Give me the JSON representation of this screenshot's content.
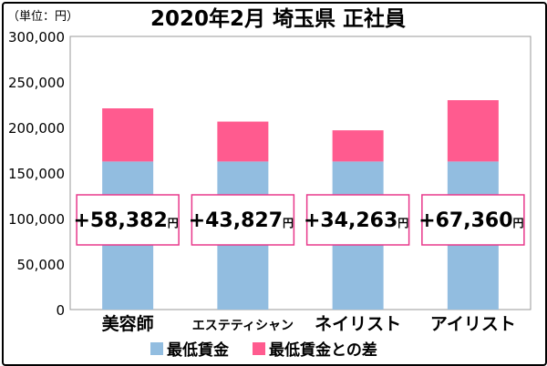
{
  "unit_label": "（単位：円）",
  "colors": {
    "base": "#92bde0",
    "diff": "#ff5b8f",
    "box_border": "#e8388b"
  },
  "chart_data": {
    "type": "bar",
    "stacked": true,
    "title": "2020年2月 埼玉県 正社員",
    "categories": [
      "美容師",
      "エステティシャン",
      "ネイリスト",
      "アイリスト"
    ],
    "series": [
      {
        "name": "最低賃金",
        "values": [
          162616,
          162616,
          162616,
          162616
        ]
      },
      {
        "name": "最低賃金との差",
        "values": [
          58382,
          43827,
          34263,
          67360
        ]
      }
    ],
    "annotations": [
      "+58,382円",
      "+43,827円",
      "+34,263円",
      "+67,360円"
    ],
    "annotation_parts": [
      {
        "sign": "+",
        "number": "58,382",
        "unit": "円"
      },
      {
        "sign": "+",
        "number": "43,827",
        "unit": "円"
      },
      {
        "sign": "+",
        "number": "34,263",
        "unit": "円"
      },
      {
        "sign": "+",
        "number": "67,360",
        "unit": "円"
      }
    ],
    "ylim": [
      0,
      300000
    ],
    "yticks": [
      "0",
      "50,000",
      "100,000",
      "150,000",
      "200,000",
      "250,000",
      "300,000"
    ],
    "ytick_values": [
      0,
      50000,
      100000,
      150000,
      200000,
      250000,
      300000
    ],
    "grid": false,
    "legend_position": "bottom"
  }
}
